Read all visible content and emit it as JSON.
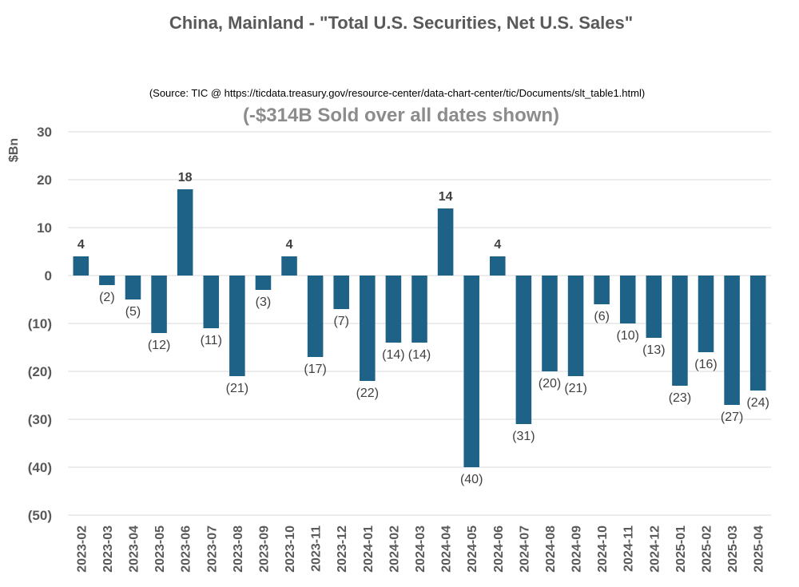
{
  "chart_data": {
    "type": "bar",
    "title": "China, Mainland - \"Total U.S. Securities, Net U.S. Sales\"",
    "source": "(Source: TIC @ https://ticdata.treasury.gov/resource-center/data-chart-center/tic/Documents/slt_table1.html)",
    "subtitle": "(-$314B Sold over all dates shown)",
    "ylabel": "$Bn",
    "xlabel": "",
    "ylim": [
      -50,
      30
    ],
    "yticks": [
      30,
      20,
      10,
      0,
      -10,
      -20,
      -30,
      -40,
      -50
    ],
    "ytick_labels": [
      "30",
      "20",
      "10",
      "0",
      "(10)",
      "(20)",
      "(30)",
      "(40)",
      "(50)"
    ],
    "grid": true,
    "categories": [
      "2023-02",
      "2023-03",
      "2023-04",
      "2023-05",
      "2023-06",
      "2023-07",
      "2023-08",
      "2023-09",
      "2023-10",
      "2023-11",
      "2023-12",
      "2024-01",
      "2024-02",
      "2024-03",
      "2024-04",
      "2024-05",
      "2024-06",
      "2024-07",
      "2024-08",
      "2024-09",
      "2024-10",
      "2024-11",
      "2024-12",
      "2025-01",
      "2025-02",
      "2025-03",
      "2025-04"
    ],
    "values": [
      4,
      -2,
      -5,
      -12,
      18,
      -11,
      -21,
      -3,
      4,
      -17,
      -7,
      -22,
      -14,
      -14,
      14,
      -40,
      4,
      -31,
      -20,
      -21,
      -6,
      -10,
      -13,
      -23,
      -16,
      -27,
      -24
    ],
    "data_labels": [
      "4",
      "(2)",
      "(5)",
      "(12)",
      "18",
      "(11)",
      "(21)",
      "(3)",
      "4",
      "(17)",
      "(7)",
      "(22)",
      "(14)",
      "(14)",
      "14",
      "(40)",
      "4",
      "(31)",
      "(20)",
      "(21)",
      "(6)",
      "(10)",
      "(13)",
      "(23)",
      "(16)",
      "(27)",
      "(24)"
    ],
    "bar_color": "#1f6288",
    "grid_color": "#d9d9d9",
    "text_color": "#595959"
  }
}
